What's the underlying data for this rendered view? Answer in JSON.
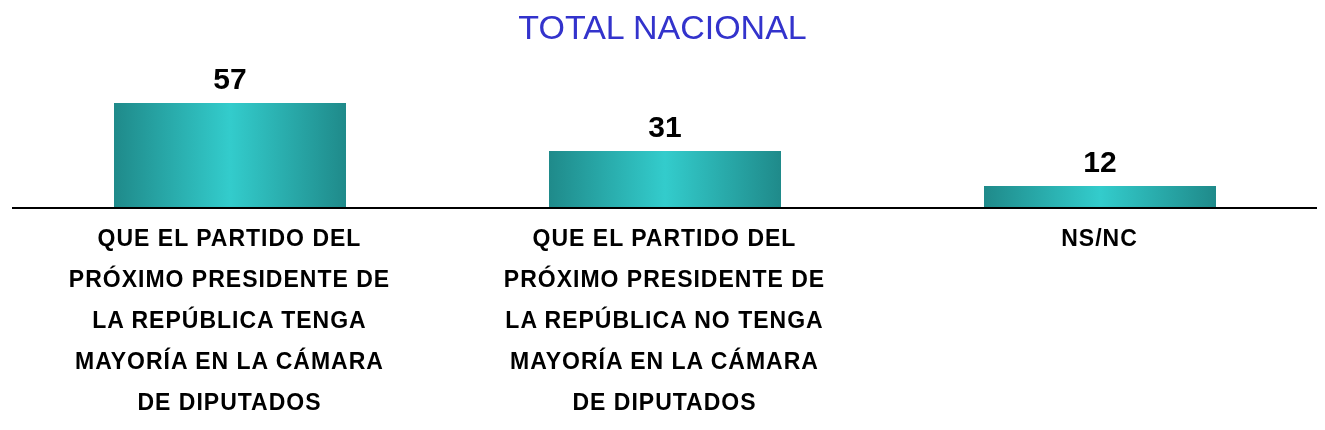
{
  "chart_data": {
    "type": "bar",
    "title": "TOTAL NACIONAL",
    "categories": [
      "QUE EL PARTIDO DEL PRÓXIMO PRESIDENTE DE LA REPÚBLICA TENGA MAYORÍA EN LA CÁMARA DE DIPUTADOS",
      "QUE EL PARTIDO DEL PRÓXIMO PRESIDENTE DE LA REPÚBLICA NO TENGA MAYORÍA EN LA CÁMARA DE DIPUTADOS",
      "NS/NC"
    ],
    "values": [
      57,
      31,
      12
    ],
    "color": "#33cccc",
    "data_labels": true,
    "grid": false,
    "legend": false
  }
}
